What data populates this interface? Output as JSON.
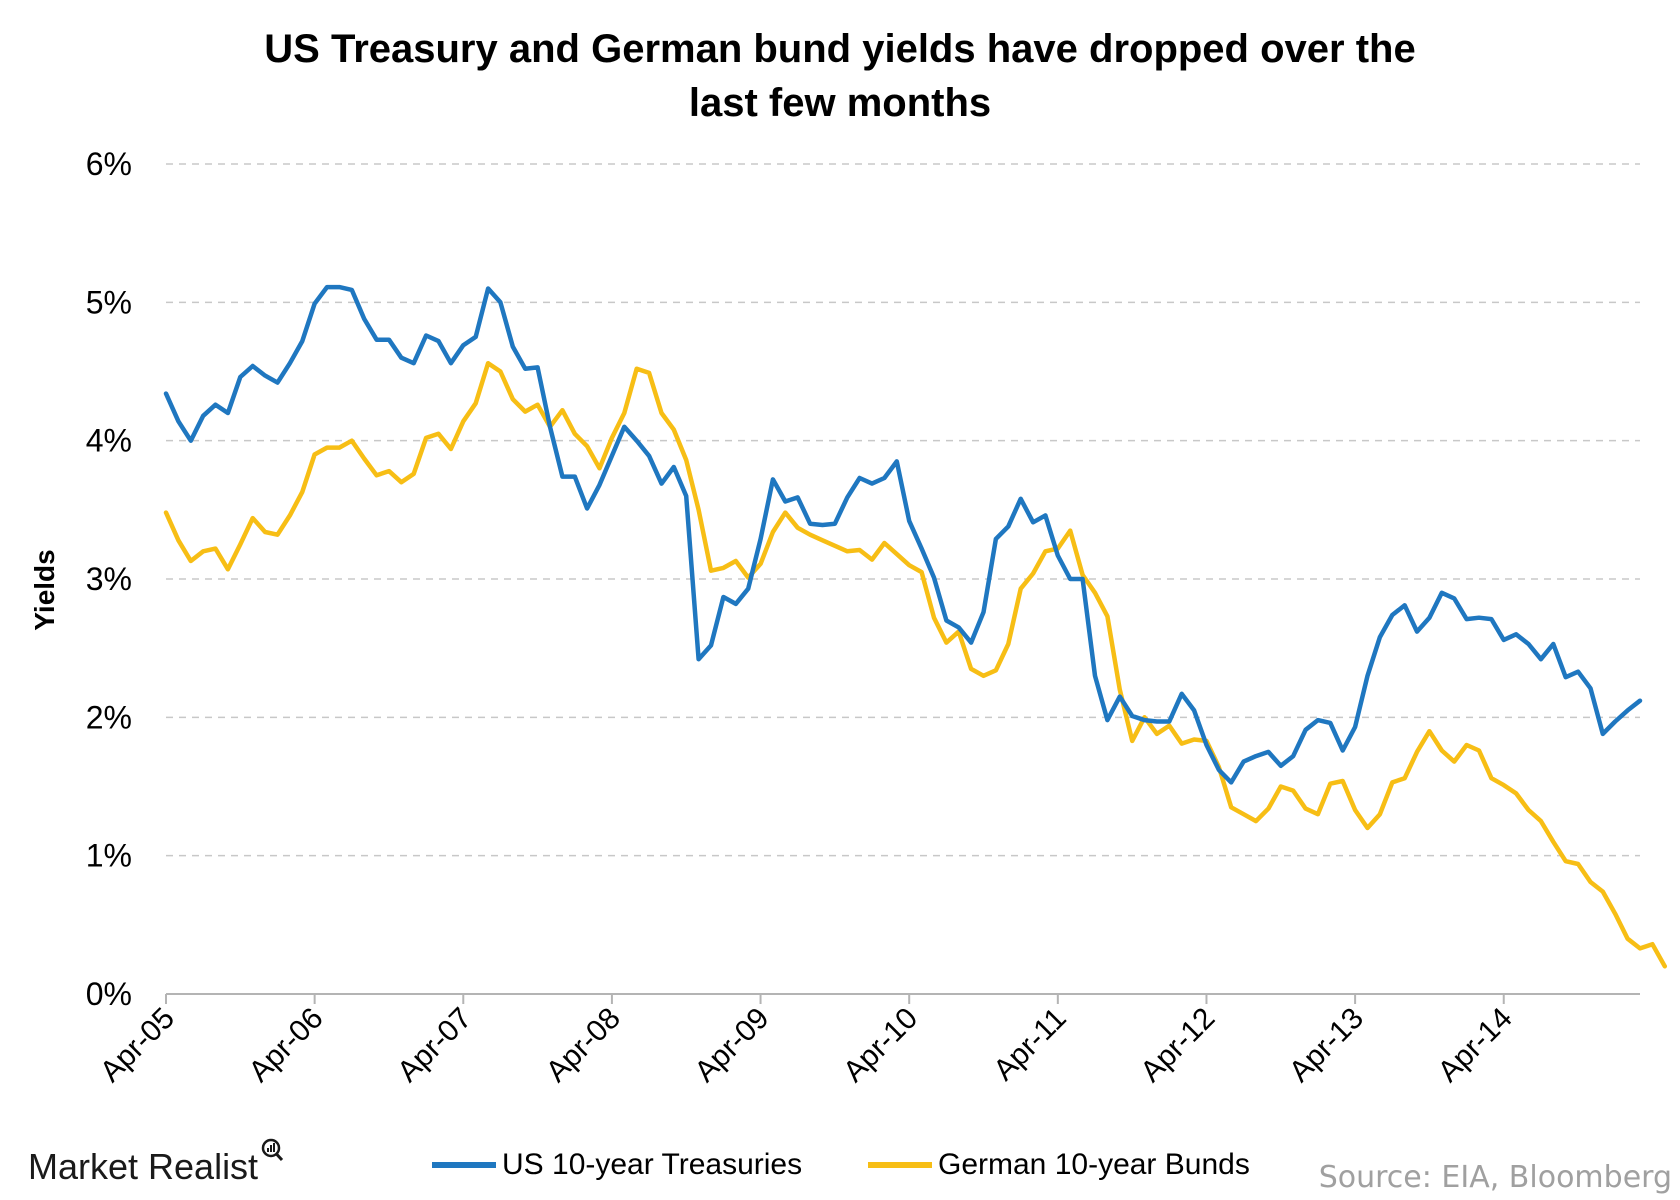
{
  "title_line1": "US Treasury and German bund yields have dropped over the",
  "title_line2": "last few months",
  "legend": {
    "us_label": "US 10-year Treasuries",
    "de_label": "German 10-year Bunds"
  },
  "logo_text": "Market Realist",
  "source_text": "Source: EIA, Bloomberg",
  "colors": {
    "us": "#1F77C0",
    "de": "#F7BE15",
    "grid": "#C8C8C8",
    "axis": "#B4B4B4"
  },
  "chart_data": {
    "type": "line",
    "title": "US Treasury and German bund yields have dropped over the last few months",
    "xlabel": "",
    "ylabel": "Yields",
    "ylim": [
      0,
      6
    ],
    "y_ticks": [
      "0%",
      "1%",
      "2%",
      "3%",
      "4%",
      "5%",
      "6%"
    ],
    "x_ticks": [
      "Apr-05",
      "Apr-06",
      "Apr-07",
      "Apr-08",
      "Apr-09",
      "Apr-10",
      "Apr-11",
      "Apr-12",
      "Apr-13",
      "Apr-14"
    ],
    "grid": true,
    "legend_position": "bottom",
    "start_month": "Apr-05",
    "frequency": "monthly",
    "series": [
      {
        "name": "US 10-year Treasuries",
        "values": [
          4.34,
          4.14,
          4.0,
          4.18,
          4.26,
          4.2,
          4.46,
          4.54,
          4.47,
          4.42,
          4.56,
          4.72,
          4.99,
          5.11,
          5.11,
          5.09,
          4.88,
          4.73,
          4.73,
          4.6,
          4.56,
          4.76,
          4.72,
          4.56,
          4.69,
          4.75,
          5.1,
          5.0,
          4.68,
          4.52,
          4.53,
          4.1,
          3.74,
          3.74,
          3.51,
          3.68,
          3.89,
          4.1,
          4.0,
          3.89,
          3.69,
          3.81,
          3.6,
          2.42,
          2.52,
          2.87,
          2.82,
          2.93,
          3.29,
          3.72,
          3.56,
          3.59,
          3.4,
          3.39,
          3.4,
          3.59,
          3.73,
          3.69,
          3.73,
          3.85,
          3.42,
          3.22,
          3.01,
          2.7,
          2.65,
          2.54,
          2.76,
          3.29,
          3.38,
          3.58,
          3.41,
          3.46,
          3.17,
          3.0,
          3.0,
          2.3,
          1.98,
          2.15,
          2.01,
          1.98,
          1.97,
          1.97,
          2.17,
          2.05,
          1.8,
          1.62,
          1.53,
          1.68,
          1.72,
          1.75,
          1.65,
          1.72,
          1.91,
          1.98,
          1.96,
          1.76,
          1.93,
          2.3,
          2.58,
          2.74,
          2.81,
          2.62,
          2.72,
          2.9,
          2.86,
          2.71,
          2.72,
          2.71,
          2.56,
          2.6,
          2.53,
          2.42,
          2.53,
          2.29,
          2.33,
          2.21,
          1.88,
          1.97,
          2.05,
          2.12
        ]
      },
      {
        "name": "German 10-year Bunds",
        "values": [
          3.48,
          3.28,
          3.13,
          3.2,
          3.22,
          3.07,
          3.25,
          3.44,
          3.34,
          3.32,
          3.46,
          3.63,
          3.9,
          3.95,
          3.95,
          4.0,
          3.87,
          3.75,
          3.78,
          3.7,
          3.76,
          4.02,
          4.05,
          3.94,
          4.14,
          4.27,
          4.56,
          4.5,
          4.3,
          4.21,
          4.26,
          4.1,
          4.22,
          4.05,
          3.96,
          3.8,
          4.02,
          4.2,
          4.52,
          4.49,
          4.2,
          4.08,
          3.86,
          3.5,
          3.06,
          3.08,
          3.13,
          3.01,
          3.11,
          3.34,
          3.48,
          3.37,
          3.32,
          3.28,
          3.24,
          3.2,
          3.21,
          3.14,
          3.26,
          3.18,
          3.1,
          3.05,
          2.72,
          2.54,
          2.62,
          2.35,
          2.3,
          2.34,
          2.53,
          2.93,
          3.04,
          3.2,
          3.22,
          3.35,
          3.03,
          2.9,
          2.73,
          2.2,
          1.83,
          2.0,
          1.88,
          1.94,
          1.81,
          1.84,
          1.83,
          1.64,
          1.35,
          1.3,
          1.25,
          1.34,
          1.5,
          1.47,
          1.34,
          1.3,
          1.52,
          1.54,
          1.33,
          1.2,
          1.3,
          1.53,
          1.56,
          1.75,
          1.9,
          1.76,
          1.68,
          1.8,
          1.76,
          1.56,
          1.51,
          1.45,
          1.33,
          1.25,
          1.1,
          0.96,
          0.94,
          0.81,
          0.74,
          0.58,
          0.4,
          0.33,
          0.36,
          0.2
        ]
      }
    ]
  }
}
